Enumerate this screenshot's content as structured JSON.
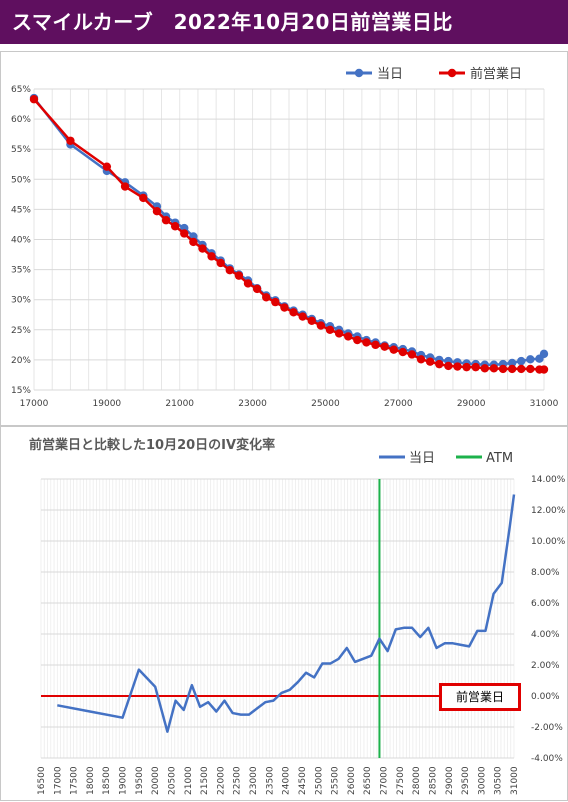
{
  "title": "スマイルカーブ　2022年10月20日前営業日比",
  "chart_data": [
    {
      "type": "line",
      "title": "",
      "legend": [
        "当日",
        "前営業日"
      ],
      "legend_position": "top-right",
      "xlim": [
        17000,
        31000
      ],
      "ylim": [
        15,
        65
      ],
      "x_ticks": [
        "17000",
        "19000",
        "21000",
        "23000",
        "25000",
        "27000",
        "29000",
        "31000"
      ],
      "y_ticks": [
        "15%",
        "20%",
        "25%",
        "30%",
        "35%",
        "40%",
        "45%",
        "50%",
        "55%",
        "60%",
        "65%"
      ],
      "grid": true,
      "colors": {
        "当日": "#4472c4",
        "前営業日": "#e00000"
      },
      "series": [
        {
          "name": "当日",
          "x": [
            17000,
            18000,
            19000,
            19500,
            20000,
            20375,
            20625,
            20875,
            21125,
            21375,
            21625,
            21875,
            22125,
            22375,
            22625,
            22875,
            23125,
            23375,
            23625,
            23875,
            24125,
            24375,
            24625,
            24875,
            25125,
            25375,
            25625,
            25875,
            26125,
            26375,
            26625,
            26875,
            27125,
            27375,
            27625,
            27875,
            28125,
            28375,
            28625,
            28875,
            29125,
            29375,
            29625,
            29875,
            30125,
            30375,
            30625,
            30875,
            31000
          ],
          "values": [
            63.5,
            55.8,
            51.4,
            49.5,
            47.3,
            45.5,
            43.8,
            42.8,
            41.9,
            40.5,
            39.1,
            37.7,
            36.5,
            35.2,
            34.2,
            33.2,
            31.9,
            30.7,
            29.9,
            28.9,
            28.2,
            27.5,
            26.8,
            26.1,
            25.6,
            25.0,
            24.4,
            23.9,
            23.3,
            22.9,
            22.4,
            22.1,
            21.8,
            21.4,
            20.8,
            20.4,
            20.0,
            19.8,
            19.6,
            19.4,
            19.3,
            19.2,
            19.2,
            19.3,
            19.5,
            19.8,
            20.1,
            20.2,
            21.0
          ]
        },
        {
          "name": "前営業日",
          "x": [
            17000,
            18000,
            19000,
            19500,
            20000,
            20375,
            20625,
            20875,
            21125,
            21375,
            21625,
            21875,
            22125,
            22375,
            22625,
            22875,
            23125,
            23375,
            23625,
            23875,
            24125,
            24375,
            24625,
            24875,
            25125,
            25375,
            25625,
            25875,
            26125,
            26375,
            26625,
            26875,
            27125,
            27375,
            27625,
            27875,
            28125,
            28375,
            28625,
            28875,
            29125,
            29375,
            29625,
            29875,
            30125,
            30375,
            30625,
            30875,
            31000
          ],
          "values": [
            63.3,
            56.4,
            52.1,
            48.8,
            46.9,
            44.7,
            43.2,
            42.2,
            41.0,
            39.6,
            38.5,
            37.2,
            36.1,
            34.9,
            34.0,
            32.7,
            31.8,
            30.4,
            29.6,
            28.7,
            27.9,
            27.2,
            26.5,
            25.7,
            25.0,
            24.4,
            23.9,
            23.3,
            22.9,
            22.5,
            22.2,
            21.7,
            21.3,
            20.9,
            20.1,
            19.7,
            19.3,
            19.0,
            18.9,
            18.8,
            18.8,
            18.6,
            18.6,
            18.5,
            18.5,
            18.5,
            18.5,
            18.4,
            18.4
          ]
        }
      ]
    },
    {
      "type": "line",
      "title": "前営業日と比較した10月20日のIV変化率",
      "legend": [
        "当日",
        "ATM"
      ],
      "legend_position": "top-right",
      "xlim": [
        16500,
        31000
      ],
      "ylim": [
        -4,
        14
      ],
      "x_ticks": [
        "16500",
        "17000",
        "17500",
        "18000",
        "18500",
        "19000",
        "19500",
        "20000",
        "20500",
        "21000",
        "21500",
        "22000",
        "22500",
        "23000",
        "23500",
        "24000",
        "24500",
        "25000",
        "25500",
        "26000",
        "26500",
        "27000",
        "27500",
        "28000",
        "28500",
        "29000",
        "29500",
        "30000",
        "30500",
        "31000"
      ],
      "y_ticks": [
        "-4.00%",
        "-2.00%",
        "0.00%",
        "2.00%",
        "4.00%",
        "6.00%",
        "8.00%",
        "10.00%",
        "12.00%",
        "14.00%"
      ],
      "grid": true,
      "atm_x": 26875,
      "reference_label": "前営業日",
      "reference_value": 0,
      "colors": {
        "当日": "#4472c4",
        "ATM": "#1db24b",
        "前営業日": "#e00000"
      },
      "series": [
        {
          "name": "当日",
          "x": [
            17000,
            18000,
            19000,
            19500,
            20000,
            20375,
            20625,
            20875,
            21125,
            21375,
            21625,
            21875,
            22125,
            22375,
            22625,
            22875,
            23125,
            23375,
            23625,
            23875,
            24125,
            24375,
            24625,
            24875,
            25125,
            25375,
            25625,
            25875,
            26125,
            26375,
            26625,
            26875,
            27125,
            27375,
            27625,
            27875,
            28125,
            28375,
            28625,
            28875,
            29125,
            29375,
            29625,
            29875,
            30125,
            30375,
            30625,
            30875,
            31000
          ],
          "values": [
            -0.6,
            -1.0,
            -1.4,
            1.7,
            0.6,
            -2.3,
            -0.3,
            -0.9,
            0.7,
            -0.7,
            -0.4,
            -1.0,
            -0.3,
            -1.1,
            -1.2,
            -1.2,
            -0.8,
            -0.4,
            -0.3,
            0.2,
            0.4,
            0.9,
            1.5,
            1.2,
            2.1,
            2.1,
            2.4,
            3.1,
            2.2,
            2.4,
            2.6,
            3.7,
            2.9,
            4.3,
            4.4,
            4.4,
            3.8,
            4.4,
            3.1,
            3.4,
            3.4,
            3.3,
            3.2,
            4.2,
            4.2,
            6.6,
            7.3,
            11.0,
            13.0
          ]
        }
      ]
    }
  ]
}
